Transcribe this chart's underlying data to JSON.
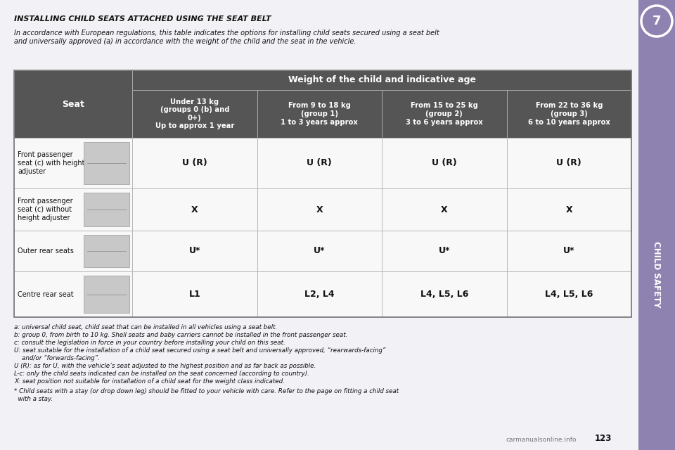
{
  "bg_color": "#1a1a1a",
  "page_bg": "#f2f1f5",
  "sidebar_color": "#8e82b0",
  "title": "INSTALLING CHILD SEATS ATTACHED USING THE SEAT BELT",
  "subtitle": "In accordance with European regulations, this table indicates the options for installing child seats secured using a seat belt\nand universally approved (a) in accordance with the weight of the child and the seat in the vehicle.",
  "col_headers": [
    "Under 13 kg\n(groups 0 (b) and\n0+)\nUp to approx 1 year",
    "From 9 to 18 kg\n(group 1)\n1 to 3 years approx",
    "From 15 to 25 kg\n(group 2)\n3 to 6 years approx",
    "From 22 to 36 kg\n(group 3)\n6 to 10 years approx"
  ],
  "row_labels": [
    "Front passenger\nseat (c) with height\nadjuster",
    "Front passenger\nseat (c) without\nheight adjuster",
    "Outer rear seats",
    "Centre rear seat"
  ],
  "cell_values": [
    [
      "U (R)",
      "U (R)",
      "U (R)",
      "U (R)"
    ],
    [
      "X",
      "X",
      "X",
      "X"
    ],
    [
      "U*",
      "U*",
      "U*",
      "U*"
    ],
    [
      "L1",
      "L2, L4",
      "L4, L5, L6",
      "L4, L5, L6"
    ]
  ],
  "footnotes": [
    "a: universal child seat, child seat that can be installed in all vehicles using a seat belt.",
    "b: group 0, from birth to 10 kg. Shell seats and baby carriers cannot be installed in the front passenger seat.",
    "c: consult the legislation in force in your country before installing your child on this seat.",
    "U: seat suitable for the installation of a child seat secured using a seat belt and universally approved, “rearwards-facing”\n    and/or “forwards-facing”.",
    "U (R): as for U, with the vehicle’s seat adjusted to the highest position and as far back as possible.",
    "L-c: only the child seats indicated can be installed on the seat concerned (according to country).",
    "X: seat position not suitable for installation of a child seat for the weight class indicated."
  ],
  "footnote_star": "* Child seats with a stay (or drop down leg) should be fitted to your vehicle with care. Refer to the page on fitting a child seat\n  with a stay.",
  "chapter_num": "7",
  "chapter_label": "CHILD SAFETY",
  "page_num": "123",
  "header_bg": "#555555",
  "row_bg_light": "#f8f8f8",
  "border_color": "#aaaaaa"
}
